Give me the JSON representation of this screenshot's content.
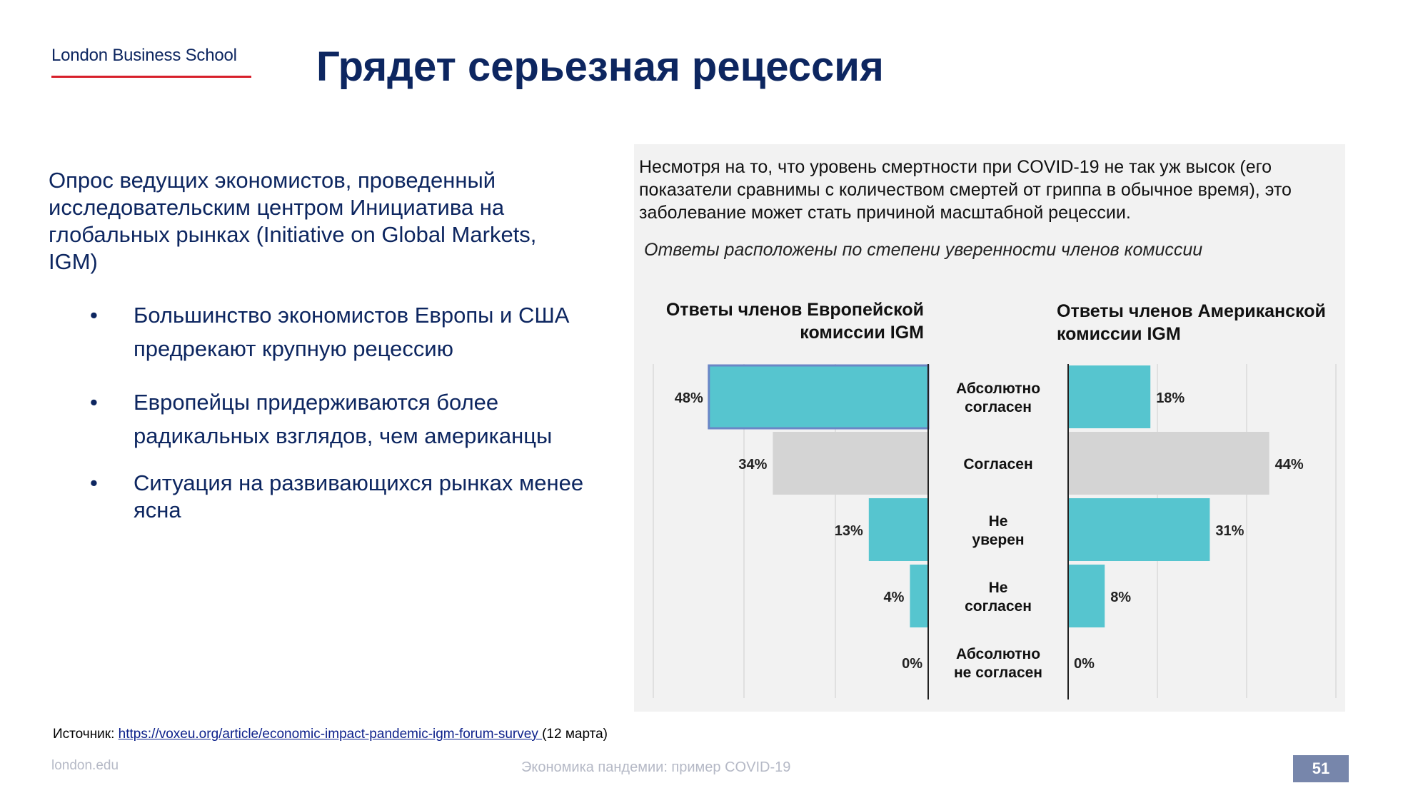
{
  "header": {
    "logo": "London Business School",
    "title": "Грядет серьезная рецессия"
  },
  "left": {
    "intro": "Опрос ведущих экономистов, проведенный исследовательским центром Инициатива на глобальных рынках (Initiative on Global Markets, IGM)",
    "bullets": [
      "Большинство экономистов Европы и США предрекают крупную рецессию",
      "Европейцы придерживаются более радикальных взглядов, чем американцы",
      "Ситуация на развивающихся рынках менее ясна"
    ],
    "bullet_glyph": "•"
  },
  "panel": {
    "heading": "Несмотря на то, что уровень смертности при COVID-19 не так уж высок (его показатели сравнимы с количеством смертей от гриппа в обычное время), это заболевание может стать причиной масштабной рецессии.",
    "subheading": "Ответы расположены по степени уверенности членов комиссии",
    "eu_title": "Ответы членов Европейской комиссии IGM",
    "us_title": "Ответы членов Американской комиссии IGM"
  },
  "chart_data": {
    "type": "bar",
    "orientation": "horizontal",
    "layout": "butterfly",
    "categories": [
      "Абсолютно согласен",
      "Согласен",
      "Не уверен",
      "Не согласен",
      "Абсолютно не согласен"
    ],
    "series": [
      {
        "name": "Ответы членов Европейской комиссии IGM",
        "values": [
          48,
          34,
          13,
          4,
          0
        ],
        "labels": [
          "48%",
          "34%",
          "13%",
          "4%",
          "0%"
        ]
      },
      {
        "name": "Ответы членов Американской комиссии IGM",
        "values": [
          18,
          44,
          31,
          8,
          0
        ],
        "labels": [
          "18%",
          "44%",
          "31%",
          "8%",
          "0%"
        ]
      }
    ],
    "category_colors": [
      "#56c5cf",
      "#d4d4d4",
      "#56c5cf",
      "#56c5cf",
      "#56c5cf"
    ],
    "highlight_border": "#6b86c6",
    "xlim": [
      0,
      50
    ],
    "grid": true
  },
  "footer": {
    "source_prefix": "Источник: ",
    "source_link": "https://voxeu.org/article/economic-impact-pandemic-igm-forum-survey ",
    "source_suffix": "(12 марта)",
    "website": "london.edu",
    "course": "Экономика пандемии: пример COVID-19",
    "page": "51"
  }
}
